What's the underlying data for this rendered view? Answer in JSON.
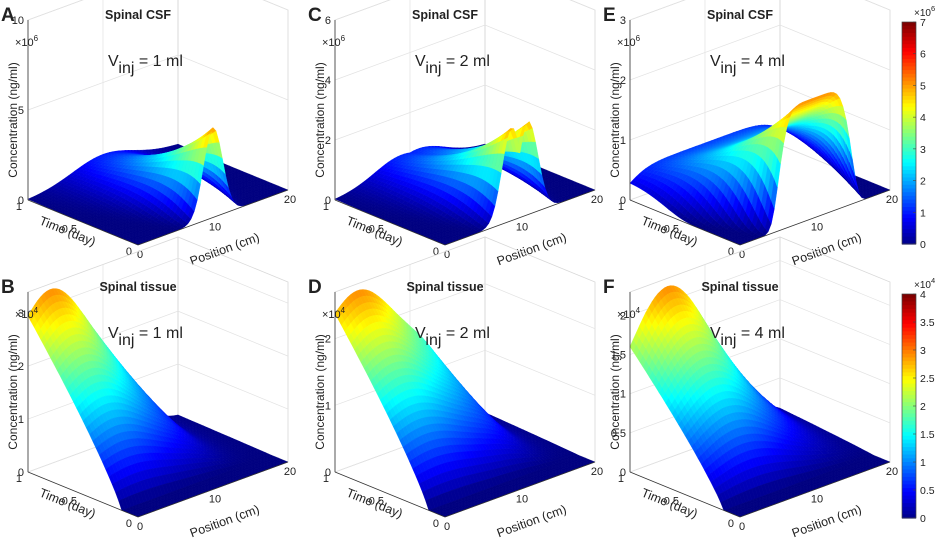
{
  "chart_data": [
    {
      "type": "surface3d",
      "panel_letter": "A",
      "title": "Spinal CSF",
      "annotation_base": "V",
      "annotation_sub": "inj",
      "annotation_tail": " = 1 ml",
      "zlabel": "Concentration (ng/ml)",
      "xlabel": "Position (cm)",
      "ylabel": "Time (day)",
      "z_exponent": "×10",
      "z_exponent_power": "6",
      "zticks": [
        "0",
        "5",
        "10"
      ],
      "zlim": [
        0,
        10
      ],
      "xticks": [
        "0",
        "10",
        "20"
      ],
      "yticks": [
        "0",
        "0.5",
        "1"
      ],
      "surface": {
        "shape": "peak",
        "peak_position_cm": 10,
        "peak_value": 5.0,
        "width_cm": 1.8
      }
    },
    {
      "type": "surface3d",
      "panel_letter": "C",
      "title": "Spinal CSF",
      "annotation_base": "V",
      "annotation_sub": "inj",
      "annotation_tail": " = 2 ml",
      "zlabel": "Concentration (ng/ml)",
      "xlabel": "Position (cm)",
      "ylabel": "Time (day)",
      "z_exponent": "×10",
      "z_exponent_power": "6",
      "zticks": [
        "0",
        "2",
        "4",
        "6"
      ],
      "zlim": [
        0,
        6
      ],
      "xticks": [
        "0",
        "10",
        "20"
      ],
      "yticks": [
        "0",
        "0.5",
        "1"
      ],
      "surface": {
        "shape": "double_peak",
        "peak_position_cm": 10,
        "peak_value": 3.2,
        "width_cm": 2.6
      }
    },
    {
      "type": "surface3d",
      "panel_letter": "E",
      "title": "Spinal CSF",
      "annotation_base": "V",
      "annotation_sub": "inj",
      "annotation_tail": " = 4 ml",
      "zlabel": "Concentration (ng/ml)",
      "xlabel": "Position (cm)",
      "ylabel": "Time (day)",
      "z_exponent": "×10",
      "z_exponent_power": "6",
      "zticks": [
        "0",
        "1",
        "2",
        "3"
      ],
      "zlim": [
        0,
        3
      ],
      "xticks": [
        "0",
        "10",
        "20"
      ],
      "yticks": [
        "0",
        "0.5",
        "1"
      ],
      "surface": {
        "shape": "plateau",
        "peak_position_cm": 10,
        "peak_value": 2.0,
        "width_cm": 5.0
      }
    },
    {
      "type": "surface3d",
      "panel_letter": "B",
      "title": "Spinal tissue",
      "annotation_base": "V",
      "annotation_sub": "inj",
      "annotation_tail": " = 1 ml",
      "zlabel": "Concentration (ng/ml)",
      "xlabel": "Position (cm)",
      "ylabel": "Time (day)",
      "z_exponent": "×10",
      "z_exponent_power": "4",
      "zticks": [
        "0",
        "1",
        "2",
        "3"
      ],
      "zlim": [
        0,
        3.4
      ],
      "xticks": [
        "0",
        "10",
        "20"
      ],
      "yticks": [
        "0",
        "0.5",
        "1"
      ],
      "surface": {
        "shape": "tissue",
        "peak_value": 3.3,
        "edge_value": 1.7,
        "drop_center_cm": 14
      }
    },
    {
      "type": "surface3d",
      "panel_letter": "D",
      "title": "Spinal tissue",
      "annotation_base": "V",
      "annotation_sub": "inj",
      "annotation_tail": " = 2 ml",
      "zlabel": "Concentration (ng/ml)",
      "xlabel": "Position (cm)",
      "ylabel": "Time (day)",
      "z_exponent": "×10",
      "z_exponent_power": "4",
      "zticks": [
        "0",
        "1",
        "2"
      ],
      "zlim": [
        0,
        2.7
      ],
      "xticks": [
        "0",
        "10",
        "20"
      ],
      "yticks": [
        "0",
        "0.5",
        "1"
      ],
      "surface": {
        "shape": "tissue",
        "peak_value": 2.6,
        "edge_value": 1.6,
        "drop_center_cm": 15
      }
    },
    {
      "type": "surface3d",
      "panel_letter": "F",
      "title": "Spinal tissue",
      "annotation_base": "V",
      "annotation_sub": "inj",
      "annotation_tail": " = 4 ml",
      "zlabel": "Concentration (ng/ml)",
      "xlabel": "Position (cm)",
      "ylabel": "Time (day)",
      "z_exponent": "×10",
      "z_exponent_power": "4",
      "zticks": [
        "0",
        "0.5",
        "1",
        "1.5",
        "2"
      ],
      "zlim": [
        0,
        2.3
      ],
      "xticks": [
        "0",
        "10",
        "20"
      ],
      "yticks": [
        "0",
        "0.5",
        "1"
      ],
      "surface": {
        "shape": "tissue_broad",
        "peak_value": 2.2,
        "edge_value": 0.7,
        "drop_center_cm": 17
      }
    }
  ],
  "colorbars": [
    {
      "exponent": "×10",
      "exponent_power": "6",
      "ticks": [
        "0",
        "1",
        "2",
        "3",
        "4",
        "5",
        "6",
        "7"
      ],
      "range": [
        0,
        7
      ]
    },
    {
      "exponent": "×10",
      "exponent_power": "4",
      "ticks": [
        "0",
        "0.5",
        "1",
        "1.5",
        "2",
        "2.5",
        "3",
        "3.5",
        "4"
      ],
      "range": [
        0,
        4
      ]
    }
  ]
}
